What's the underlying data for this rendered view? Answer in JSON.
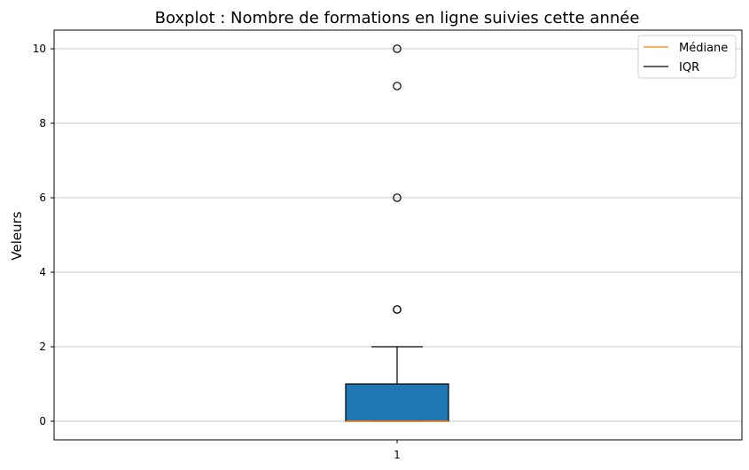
{
  "chart_data": {
    "type": "boxplot",
    "title": "Boxplot : Nombre de formations en ligne suivies cette année",
    "xlabel": "",
    "ylabel": "Veleurs",
    "categories": [
      "1"
    ],
    "ylim": [
      -0.5,
      10.5
    ],
    "yticks": [
      0,
      2,
      4,
      6,
      8,
      10
    ],
    "grid": "y",
    "legend_position": "top-right",
    "box": {
      "whisker_low": 0,
      "q1": 0,
      "median": 0,
      "q3": 1,
      "whisker_high": 2,
      "outliers": [
        3,
        3,
        6,
        9,
        10
      ]
    },
    "legend": [
      {
        "label": "Médiane",
        "color": "#ff7f0e"
      },
      {
        "label": "IQR",
        "color": "#000000"
      }
    ],
    "colors": {
      "box_fill": "#1f77b4",
      "median": "#ff7f0e",
      "grid": "#c8c8c8"
    }
  }
}
